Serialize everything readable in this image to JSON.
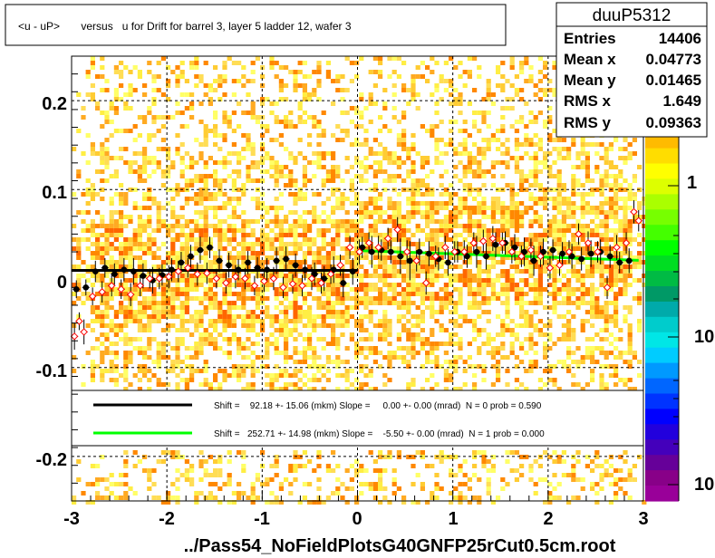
{
  "chart_data": {
    "type": "scatter",
    "title": "<u - uP>       versus   u for Drift for barrel 3, layer 5 ladder 12, wafer 3",
    "xlabel": "../Pass54_NoFieldPlotsG40GNFP25rCut0.5cm.root",
    "ylabel": "",
    "xlim": [
      -3,
      3
    ],
    "ylim": [
      -0.25,
      0.25
    ],
    "x_ticks": [
      "-3",
      "-2",
      "-1",
      "0",
      "1",
      "2",
      "3"
    ],
    "y_ticks": [
      "-0.2",
      "-0.1",
      "0",
      "0.1",
      "0.2"
    ],
    "z_ticks": [
      "1",
      "10",
      "10"
    ],
    "grid": true,
    "stats": {
      "name": "duuP5312",
      "rows": [
        {
          "label": "Entries",
          "value": "14406"
        },
        {
          "label": "Mean x",
          "value": "0.04773"
        },
        {
          "label": "Mean y",
          "value": "0.01465"
        },
        {
          "label": "RMS x",
          "value": "1.649"
        },
        {
          "label": "RMS y",
          "value": "0.09363"
        }
      ]
    },
    "legend": [
      {
        "color": "#000000",
        "text": "Shift =    92.18 +- 15.06 (mkm) Slope =     0.00 +- 0.00 (mrad)  N = 0 prob = 0.590"
      },
      {
        "color": "#00ff00",
        "text": "Shift =   252.71 +- 14.98 (mkm) Slope =    -5.50 +- 0.00 (mrad)  N = 1 prob = 0.000"
      }
    ],
    "fit_lines": [
      {
        "color": "#000000",
        "x": [
          -3.0,
          0.0
        ],
        "y": [
          0.0092,
          0.0092
        ]
      },
      {
        "color": "#00ff00",
        "x": [
          0.0,
          2.95
        ],
        "y": [
          0.0315,
          0.0205
        ]
      }
    ],
    "series": [
      {
        "marker": "filled-circle",
        "color": "#000000",
        "x": [
          -2.95,
          -2.85,
          -2.75,
          -2.65,
          -2.55,
          -2.45,
          -2.35,
          -2.25,
          -2.15,
          -2.05,
          -1.95,
          -1.85,
          -1.75,
          -1.65,
          -1.55,
          -1.45,
          -1.35,
          -1.25,
          -1.15,
          -1.05,
          -0.95,
          -0.85,
          -0.75,
          -0.65,
          -0.55,
          -0.45,
          -0.35,
          -0.25,
          -0.15,
          -0.05,
          0.05,
          0.15,
          0.25,
          0.35,
          0.45,
          0.55,
          0.65,
          0.75,
          0.85,
          0.95,
          1.05,
          1.15,
          1.25,
          1.35,
          1.45,
          1.55,
          1.65,
          1.75,
          1.85,
          1.95,
          2.05,
          2.15,
          2.25,
          2.35,
          2.45,
          2.55,
          2.65,
          2.75,
          2.85
        ],
        "y": [
          -0.012,
          -0.01,
          0.008,
          0.012,
          0.005,
          0.01,
          0.008,
          0.003,
          -0.002,
          0.004,
          0.01,
          0.018,
          0.025,
          0.032,
          0.035,
          0.02,
          0.015,
          0.01,
          0.018,
          0.012,
          0.01,
          0.02,
          0.022,
          0.015,
          0.01,
          0.005,
          0.0,
          0.01,
          -0.005,
          0.008,
          0.035,
          0.03,
          0.032,
          0.03,
          0.025,
          0.02,
          0.03,
          0.028,
          0.022,
          0.018,
          0.03,
          0.025,
          0.03,
          0.025,
          0.038,
          0.04,
          0.035,
          0.03,
          0.02,
          0.03,
          0.032,
          0.028,
          0.025,
          0.022,
          0.028,
          0.03,
          0.025,
          0.018,
          0.02
        ],
        "err": [
          0.01,
          0.009,
          0.012,
          0.011,
          0.012,
          0.013,
          0.015,
          0.014,
          0.015,
          0.012,
          0.013,
          0.012,
          0.013,
          0.015,
          0.012,
          0.013,
          0.014,
          0.012,
          0.013,
          0.012,
          0.013,
          0.015,
          0.014,
          0.013,
          0.012,
          0.013,
          0.014,
          0.015,
          0.016,
          0.015,
          0.012,
          0.018,
          0.012,
          0.013,
          0.02,
          0.022,
          0.015,
          0.014,
          0.013,
          0.015,
          0.012,
          0.013,
          0.018,
          0.015,
          0.014,
          0.013,
          0.015,
          0.016,
          0.017,
          0.015,
          0.012,
          0.013,
          0.014,
          0.013,
          0.015,
          0.014,
          0.013,
          0.012,
          0.014
        ]
      },
      {
        "marker": "open-diamond",
        "color": "#ff0000",
        "x": [
          -2.97,
          -2.92,
          -2.87,
          -2.78,
          -2.68,
          -2.58,
          -2.48,
          -2.38,
          -2.28,
          -2.18,
          -2.08,
          -1.98,
          -1.88,
          -1.78,
          -1.68,
          -1.58,
          -1.48,
          -1.38,
          -1.28,
          -1.18,
          -1.08,
          -0.98,
          -0.88,
          -0.78,
          -0.68,
          -0.58,
          -0.48,
          -0.38,
          -0.28,
          -0.18,
          -0.08,
          0.02,
          0.12,
          0.22,
          0.32,
          0.42,
          0.52,
          0.62,
          0.72,
          0.82,
          0.92,
          1.02,
          1.12,
          1.22,
          1.32,
          1.42,
          1.52,
          1.62,
          1.72,
          1.82,
          1.92,
          2.02,
          2.12,
          2.22,
          2.32,
          2.42,
          2.52,
          2.62,
          2.72,
          2.82,
          2.9,
          2.95
        ],
        "y": [
          -0.065,
          -0.048,
          -0.06,
          -0.02,
          -0.015,
          -0.008,
          -0.012,
          -0.018,
          -0.008,
          0.0,
          0.0,
          0.002,
          0.008,
          0.012,
          0.005,
          0.006,
          0.0,
          -0.005,
          0.002,
          0.0,
          -0.008,
          -0.003,
          0.0,
          -0.01,
          -0.006,
          -0.008,
          0.0,
          -0.005,
          0.005,
          0.015,
          0.035,
          0.03,
          0.04,
          0.035,
          0.045,
          0.055,
          0.03,
          0.02,
          -0.005,
          0.025,
          0.035,
          0.03,
          0.03,
          0.04,
          0.042,
          0.045,
          0.04,
          0.03,
          0.025,
          0.032,
          0.025,
          0.012,
          0.015,
          0.03,
          0.05,
          0.04,
          0.03,
          -0.01,
          0.035,
          0.04,
          0.075,
          0.065
        ],
        "err": [
          0.015,
          0.01,
          0.014,
          0.01,
          0.012,
          0.012,
          0.011,
          0.013,
          0.012,
          0.011,
          0.012,
          0.013,
          0.012,
          0.011,
          0.013,
          0.012,
          0.011,
          0.012,
          0.013,
          0.012,
          0.011,
          0.012,
          0.013,
          0.012,
          0.011,
          0.012,
          0.013,
          0.012,
          0.011,
          0.012,
          0.013,
          0.014,
          0.012,
          0.013,
          0.012,
          0.014,
          0.013,
          0.012,
          0.013,
          0.012,
          0.013,
          0.012,
          0.013,
          0.012,
          0.013,
          0.014,
          0.012,
          0.013,
          0.012,
          0.013,
          0.012,
          0.013,
          0.012,
          0.013,
          0.012,
          0.013,
          0.012,
          0.013,
          0.014,
          0.012,
          0.013,
          0.012
        ]
      }
    ]
  }
}
